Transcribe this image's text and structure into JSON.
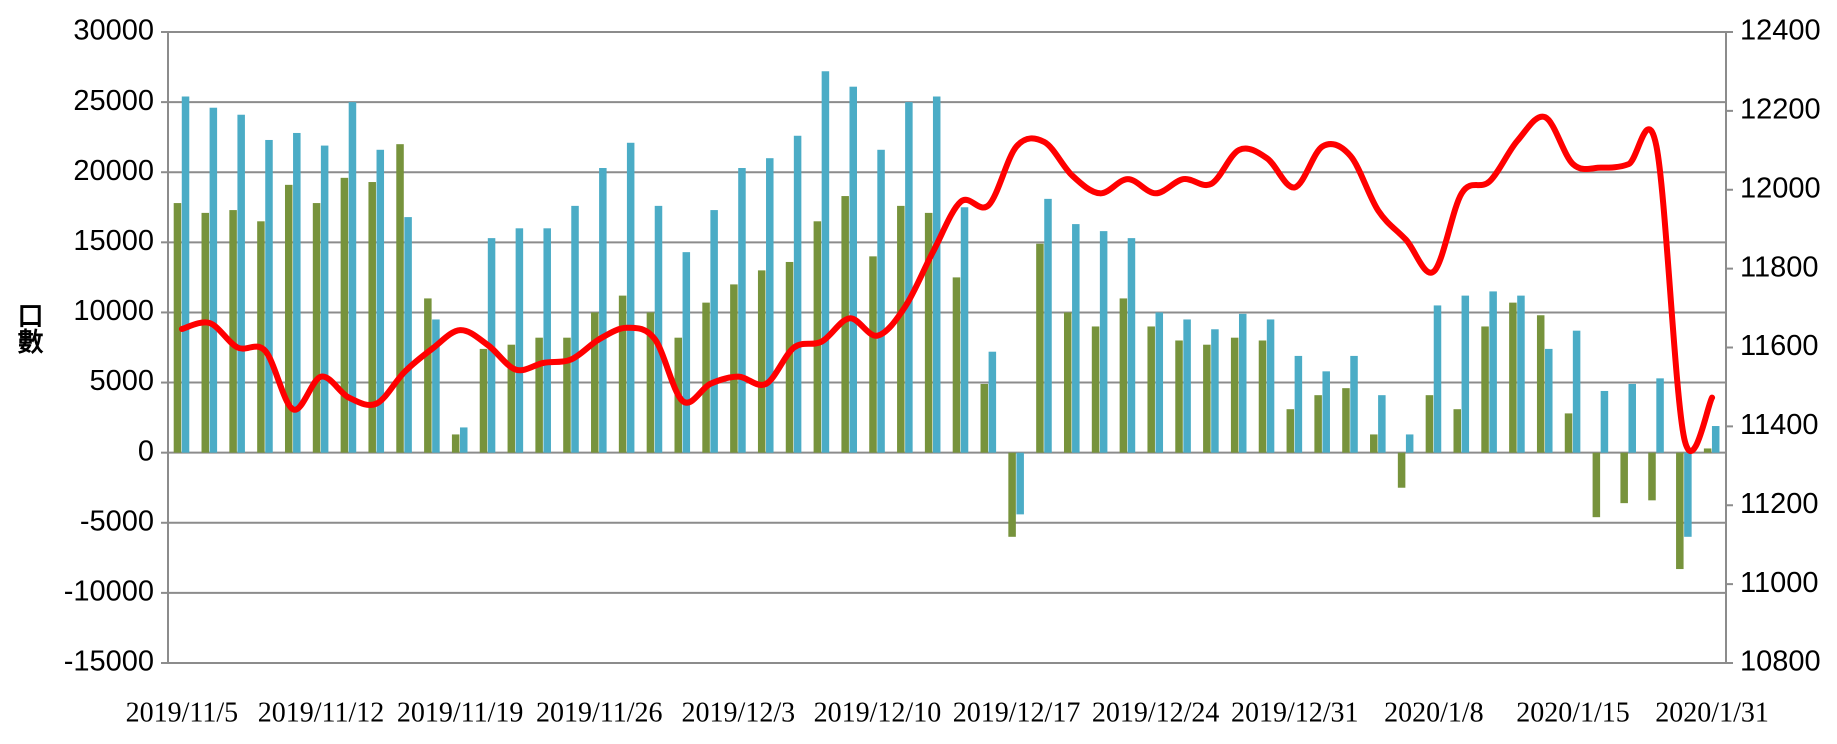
{
  "chart_data": {
    "type": "bar_line",
    "y_label": "口數",
    "categories": [
      "2019/11/5",
      null,
      null,
      null,
      null,
      "2019/11/12",
      null,
      null,
      null,
      null,
      "2019/11/19",
      null,
      null,
      null,
      null,
      "2019/11/26",
      null,
      null,
      null,
      null,
      "2019/12/3",
      null,
      null,
      null,
      null,
      "2019/12/10",
      null,
      null,
      null,
      null,
      "2019/12/17",
      null,
      null,
      null,
      null,
      "2019/12/24",
      null,
      null,
      null,
      null,
      "2019/12/31",
      null,
      null,
      null,
      null,
      "2020/1/8",
      null,
      null,
      null,
      null,
      "2020/1/15",
      null,
      null,
      null,
      null,
      "2020/1/31"
    ],
    "series": [
      {
        "type": "bar",
        "color": "#77933c",
        "values": [
          17800,
          17100,
          17300,
          16500,
          19100,
          17800,
          19600,
          19300,
          22000,
          11000,
          1300,
          7400,
          7700,
          8200,
          8200,
          10000,
          11200,
          10000,
          8200,
          10700,
          12000,
          13000,
          13600,
          16500,
          18300,
          14000,
          17600,
          17100,
          12500,
          4900,
          -6000,
          14900,
          10000,
          9000,
          11000,
          9000,
          8000,
          7700,
          8200,
          8000,
          3100,
          4100,
          4600,
          1300,
          -2500,
          4100,
          3100,
          9000,
          10700,
          9800,
          2800,
          -4600,
          -3600,
          -3400,
          -8300,
          300
        ]
      },
      {
        "type": "bar",
        "color": "#4bacc6",
        "values": [
          25400,
          24600,
          24100,
          22300,
          22800,
          21900,
          25000,
          21600,
          16800,
          9500,
          1800,
          15300,
          16000,
          16000,
          17600,
          20300,
          22100,
          17600,
          14300,
          17300,
          20300,
          21000,
          22600,
          27200,
          26100,
          21600,
          25000,
          25400,
          17500,
          7200,
          -4400,
          18100,
          16300,
          15800,
          15300,
          10000,
          9500,
          8800,
          9900,
          9500,
          6900,
          5800,
          6900,
          4100,
          1300,
          10500,
          11200,
          11500,
          11200,
          7400,
          8700,
          4400,
          4900,
          5300,
          -6000,
          1900
        ]
      },
      {
        "type": "line",
        "color": "#ff0000",
        "axis": "y2",
        "values": [
          11647,
          11662,
          11600,
          11591,
          11443,
          11526,
          11473,
          11458,
          11538,
          11597,
          11644,
          11606,
          11544,
          11561,
          11570,
          11621,
          11650,
          11621,
          11464,
          11508,
          11526,
          11508,
          11600,
          11615,
          11674,
          11630,
          11704,
          11843,
          11970,
          11961,
          12110,
          12121,
          12036,
          11991,
          12027,
          11991,
          12027,
          12015,
          12101,
          12080,
          12006,
          12110,
          12086,
          11947,
          11873,
          11793,
          11991,
          12021,
          12124,
          12184,
          12065,
          12056,
          12065,
          12110,
          11369,
          11473
        ]
      }
    ],
    "ylim": [
      -15000,
      30000
    ],
    "yticks": [
      -15000,
      -10000,
      -5000,
      0,
      5000,
      10000,
      15000,
      20000,
      25000,
      30000
    ],
    "y2lim": [
      10800,
      12400
    ],
    "y2ticks": [
      10800,
      11000,
      11200,
      11400,
      11600,
      11800,
      12000,
      12200,
      12400
    ],
    "grid": true
  }
}
